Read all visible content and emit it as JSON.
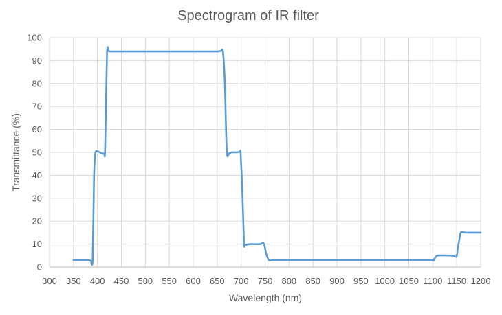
{
  "chart_data": {
    "type": "line",
    "title": "Spectrogram of IR filter",
    "xlabel": "Wavelength (nm)",
    "ylabel": "Transmittance (%)",
    "xlim": [
      300,
      1200
    ],
    "ylim": [
      0,
      100
    ],
    "xticks": [
      300,
      350,
      400,
      450,
      500,
      550,
      600,
      650,
      700,
      750,
      800,
      850,
      900,
      950,
      1000,
      1050,
      1100,
      1150,
      1200
    ],
    "yticks": [
      0,
      10,
      20,
      30,
      40,
      50,
      60,
      70,
      80,
      90,
      100
    ],
    "grid": true,
    "legend": "none",
    "series": [
      {
        "color": "#5b9bd5",
        "x": [
          350,
          380,
          386,
          390,
          393,
          396,
          405,
          410,
          414,
          416,
          420,
          423,
          430,
          500,
          600,
          650,
          655,
          658,
          662,
          666,
          670,
          675,
          680,
          690,
          697,
          699,
          703,
          706,
          708,
          712,
          720,
          740,
          745,
          748,
          752,
          757,
          760,
          765,
          800,
          1000,
          1096,
          1100,
          1105,
          1110,
          1140,
          1147,
          1150,
          1153,
          1158,
          1162,
          1170,
          1200
        ],
        "y": [
          3,
          3,
          2.8,
          3,
          40,
          50,
          50,
          49.5,
          49.5,
          51,
          93.5,
          94.2,
          94,
          94,
          94,
          94,
          94.2,
          94.2,
          94,
          80,
          50,
          49.5,
          50,
          50,
          50.2,
          49.5,
          30,
          10,
          9.5,
          9.8,
          10,
          10,
          10.5,
          10,
          6,
          3.2,
          2.8,
          3,
          3,
          3,
          3,
          2.8,
          4,
          5,
          5,
          4.5,
          4.8,
          9,
          14.8,
          15.2,
          15,
          15
        ]
      }
    ]
  }
}
